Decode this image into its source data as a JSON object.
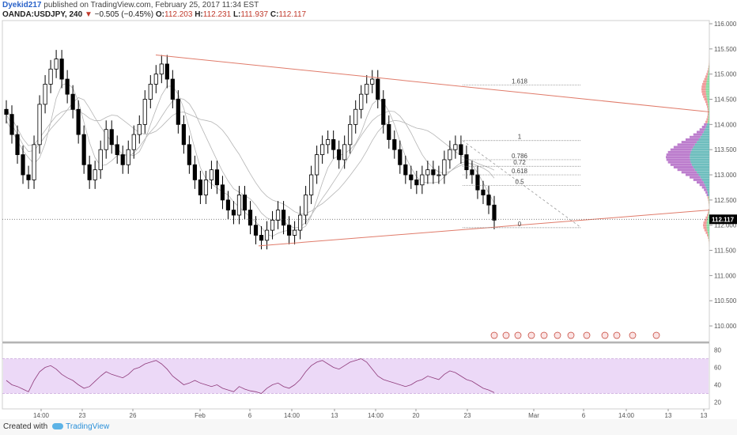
{
  "header": {
    "author": "Dyekid217",
    "published": "published on TradingView.com, February 25, 2017 11:34 EST",
    "symbol": "OANDA:USDJPY, 240",
    "change_arrow": "▼",
    "change": "−0.505 (−0.45%)",
    "o_label": "O:",
    "o_value": "112.203",
    "h_label": "H:",
    "h_value": "112.231",
    "l_label": "L:",
    "l_value": "111.937",
    "c_label": "C:",
    "c_value": "112.117"
  },
  "footer": {
    "created_with": "Created with",
    "brand": "TradingView"
  },
  "colors": {
    "candle": "#000000",
    "trendline": "#e07b6a",
    "ma": "#b5b5b5",
    "rsi_line": "#8e3a7a",
    "rsi_band": "#ecd9f7",
    "vp_up": "#7ed99a",
    "vp_down": "#f08f8f",
    "vp_va_up": "#5fb7b7",
    "vp_va_down": "#b56fc8",
    "price_label_bg": "#000000"
  },
  "chart_data": {
    "type": "candlestick",
    "price_axis": {
      "ticks": [
        "116.000",
        "115.500",
        "115.000",
        "114.500",
        "114.000",
        "113.500",
        "113.000",
        "112.500",
        "112.000",
        "111.500",
        "111.000",
        "110.500",
        "110.000"
      ],
      "current": "112.117"
    },
    "time_axis": {
      "ticks": [
        "14:00",
        "23",
        "26",
        "Feb",
        "6",
        "14:00",
        "13",
        "14:00",
        "20",
        "23",
        "Mar",
        "6",
        "14:00",
        "13",
        "13"
      ]
    },
    "rsi_axis": {
      "ticks": [
        "80",
        "60",
        "40",
        "20"
      ],
      "band": [
        30,
        70
      ]
    },
    "fib_levels": [
      {
        "label": "1.618",
        "price": 114.78
      },
      {
        "label": "1",
        "price": 113.68
      },
      {
        "label": "0.786",
        "price": 113.3
      },
      {
        "label": "0.72",
        "price": 113.17
      },
      {
        "label": "0.618",
        "price": 113.0
      },
      {
        "label": "0.5",
        "price": 112.79
      },
      {
        "label": "0",
        "price": 111.95
      }
    ],
    "trendlines": [
      {
        "from": {
          "x": "26",
          "price": 115.38
        },
        "to": {
          "x": "axis",
          "price": 114.25
        }
      },
      {
        "from": {
          "x": "6",
          "price": 111.59
        },
        "to": {
          "x": "axis",
          "price": 112.3
        }
      }
    ],
    "close_series": [
      114.2,
      113.8,
      113.4,
      113.0,
      112.9,
      113.6,
      114.4,
      114.8,
      115.1,
      115.3,
      114.9,
      114.6,
      114.3,
      113.8,
      113.2,
      112.9,
      113.1,
      113.5,
      113.9,
      113.6,
      113.4,
      113.2,
      113.5,
      113.8,
      114.0,
      114.5,
      114.8,
      115.0,
      115.2,
      114.9,
      114.5,
      114.0,
      113.6,
      113.2,
      112.9,
      112.6,
      112.9,
      113.1,
      112.8,
      112.5,
      112.3,
      112.2,
      112.6,
      112.3,
      112.0,
      111.8,
      111.7,
      111.9,
      112.1,
      112.3,
      112.0,
      111.8,
      111.9,
      112.2,
      112.6,
      113.0,
      113.4,
      113.6,
      113.7,
      113.5,
      113.3,
      113.6,
      114.0,
      114.3,
      114.6,
      114.8,
      114.9,
      114.5,
      114.0,
      113.7,
      113.5,
      113.2,
      113.0,
      112.9,
      112.8,
      113.0,
      113.1,
      113.0,
      113.0,
      113.3,
      113.5,
      113.6,
      113.4,
      113.1,
      113.0,
      112.7,
      112.6,
      112.4,
      112.1
    ],
    "rsi_series": [
      45,
      40,
      38,
      35,
      32,
      45,
      55,
      60,
      62,
      58,
      52,
      48,
      45,
      40,
      36,
      38,
      44,
      50,
      55,
      52,
      50,
      48,
      52,
      58,
      60,
      64,
      66,
      68,
      64,
      58,
      50,
      45,
      40,
      42,
      45,
      42,
      40,
      38,
      40,
      36,
      34,
      32,
      38,
      35,
      33,
      32,
      30,
      36,
      40,
      42,
      38,
      36,
      40,
      46,
      55,
      62,
      66,
      68,
      64,
      60,
      58,
      62,
      66,
      68,
      70,
      66,
      58,
      50,
      46,
      44,
      42,
      40,
      38,
      40,
      44,
      46,
      50,
      48,
      46,
      52,
      56,
      54,
      50,
      46,
      44,
      40,
      36,
      34,
      31
    ]
  }
}
